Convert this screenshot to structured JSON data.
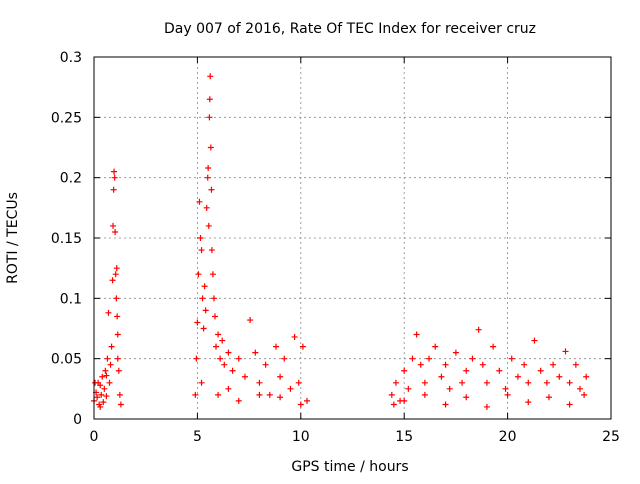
{
  "chart_data": {
    "type": "scatter",
    "title": "Day 007 of 2016, Rate Of TEC Index for receiver cruz",
    "xlabel": "GPS time / hours",
    "ylabel": "ROTI / TECUs",
    "xlim": [
      0,
      25
    ],
    "ylim": [
      0,
      0.3
    ],
    "xticks": [
      0,
      5,
      10,
      15,
      20,
      25
    ],
    "xtick_labels": [
      "0",
      "5",
      "10",
      "15",
      "20",
      "25"
    ],
    "yticks": [
      0,
      0.05,
      0.1,
      0.15,
      0.2,
      0.25,
      0.3
    ],
    "ytick_labels": [
      "0",
      "0.05",
      "0.1",
      "0.15",
      "0.2",
      "0.25",
      "0.3"
    ],
    "grid": true,
    "marker": "+",
    "color": "#ff0000",
    "series": [
      {
        "points": [
          [
            0.0,
            0.015
          ],
          [
            0.1,
            0.022
          ],
          [
            0.15,
            0.018
          ],
          [
            0.2,
            0.03
          ],
          [
            0.25,
            0.012
          ],
          [
            0.3,
            0.028
          ],
          [
            0.35,
            0.02
          ],
          [
            0.4,
            0.035
          ],
          [
            0.45,
            0.014
          ],
          [
            0.5,
            0.025
          ],
          [
            0.55,
            0.04
          ],
          [
            0.6,
            0.019
          ],
          [
            0.65,
            0.05
          ],
          [
            0.7,
            0.088
          ],
          [
            0.75,
            0.03
          ],
          [
            0.8,
            0.045
          ],
          [
            0.85,
            0.06
          ],
          [
            0.9,
            0.115
          ],
          [
            0.92,
            0.16
          ],
          [
            0.95,
            0.19
          ],
          [
            0.97,
            0.205
          ],
          [
            1.0,
            0.2
          ],
          [
            1.02,
            0.155
          ],
          [
            1.05,
            0.12
          ],
          [
            1.08,
            0.1
          ],
          [
            1.1,
            0.125
          ],
          [
            1.12,
            0.085
          ],
          [
            1.15,
            0.07
          ],
          [
            1.2,
            0.04
          ],
          [
            1.25,
            0.02
          ],
          [
            1.3,
            0.012
          ],
          [
            0.05,
            0.03
          ],
          [
            0.3,
            0.01
          ],
          [
            0.6,
            0.036
          ],
          [
            1.15,
            0.05
          ],
          [
            4.9,
            0.02
          ],
          [
            4.95,
            0.05
          ],
          [
            5.0,
            0.08
          ],
          [
            5.05,
            0.12
          ],
          [
            5.1,
            0.18
          ],
          [
            5.15,
            0.15
          ],
          [
            5.2,
            0.14
          ],
          [
            5.25,
            0.1
          ],
          [
            5.3,
            0.075
          ],
          [
            5.35,
            0.11
          ],
          [
            5.4,
            0.09
          ],
          [
            5.45,
            0.175
          ],
          [
            5.5,
            0.2
          ],
          [
            5.52,
            0.208
          ],
          [
            5.55,
            0.16
          ],
          [
            5.58,
            0.25
          ],
          [
            5.6,
            0.265
          ],
          [
            5.62,
            0.284
          ],
          [
            5.65,
            0.225
          ],
          [
            5.68,
            0.19
          ],
          [
            5.7,
            0.14
          ],
          [
            5.75,
            0.12
          ],
          [
            5.8,
            0.1
          ],
          [
            5.85,
            0.085
          ],
          [
            5.9,
            0.06
          ],
          [
            6.0,
            0.07
          ],
          [
            6.1,
            0.05
          ],
          [
            6.2,
            0.065
          ],
          [
            6.3,
            0.045
          ],
          [
            6.5,
            0.055
          ],
          [
            6.7,
            0.04
          ],
          [
            7.0,
            0.05
          ],
          [
            7.3,
            0.035
          ],
          [
            7.55,
            0.082
          ],
          [
            7.8,
            0.055
          ],
          [
            8.0,
            0.03
          ],
          [
            8.3,
            0.045
          ],
          [
            8.5,
            0.02
          ],
          [
            8.8,
            0.06
          ],
          [
            9.0,
            0.035
          ],
          [
            9.2,
            0.05
          ],
          [
            9.5,
            0.025
          ],
          [
            9.7,
            0.068
          ],
          [
            9.9,
            0.03
          ],
          [
            10.1,
            0.06
          ],
          [
            10.3,
            0.015
          ],
          [
            5.2,
            0.03
          ],
          [
            6.0,
            0.02
          ],
          [
            7.0,
            0.015
          ],
          [
            8.0,
            0.02
          ],
          [
            9.0,
            0.018
          ],
          [
            10.0,
            0.012
          ],
          [
            6.5,
            0.025
          ],
          [
            14.4,
            0.02
          ],
          [
            14.6,
            0.03
          ],
          [
            14.8,
            0.015
          ],
          [
            15.0,
            0.04
          ],
          [
            15.2,
            0.025
          ],
          [
            15.4,
            0.05
          ],
          [
            15.6,
            0.07
          ],
          [
            15.8,
            0.045
          ],
          [
            16.0,
            0.03
          ],
          [
            16.2,
            0.05
          ],
          [
            16.5,
            0.06
          ],
          [
            16.8,
            0.035
          ],
          [
            17.0,
            0.045
          ],
          [
            17.2,
            0.025
          ],
          [
            17.5,
            0.055
          ],
          [
            17.8,
            0.03
          ],
          [
            18.0,
            0.04
          ],
          [
            18.3,
            0.05
          ],
          [
            18.6,
            0.074
          ],
          [
            18.8,
            0.045
          ],
          [
            19.0,
            0.03
          ],
          [
            19.3,
            0.06
          ],
          [
            19.6,
            0.04
          ],
          [
            19.9,
            0.025
          ],
          [
            20.2,
            0.05
          ],
          [
            20.5,
            0.035
          ],
          [
            20.8,
            0.045
          ],
          [
            21.0,
            0.03
          ],
          [
            21.3,
            0.065
          ],
          [
            21.6,
            0.04
          ],
          [
            21.9,
            0.03
          ],
          [
            22.2,
            0.045
          ],
          [
            22.5,
            0.035
          ],
          [
            22.8,
            0.056
          ],
          [
            23.0,
            0.03
          ],
          [
            23.3,
            0.045
          ],
          [
            23.5,
            0.025
          ],
          [
            23.8,
            0.035
          ],
          [
            15.0,
            0.015
          ],
          [
            16.0,
            0.02
          ],
          [
            17.0,
            0.012
          ],
          [
            18.0,
            0.018
          ],
          [
            19.0,
            0.01
          ],
          [
            20.0,
            0.02
          ],
          [
            21.0,
            0.014
          ],
          [
            22.0,
            0.018
          ],
          [
            23.0,
            0.012
          ],
          [
            23.7,
            0.02
          ],
          [
            14.5,
            0.012
          ]
        ]
      }
    ]
  }
}
